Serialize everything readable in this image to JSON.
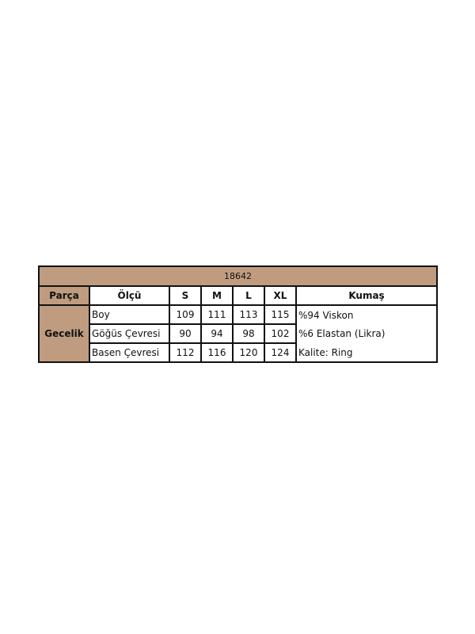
{
  "table": {
    "title": "18642",
    "headers": [
      "Parça",
      "Ölçü",
      "S",
      "M",
      "L",
      "XL",
      "Kumaş"
    ],
    "part": "Gecelik",
    "rows": [
      {
        "measure": "Boy",
        "values": [
          "109",
          "111",
          "113",
          "115"
        ],
        "fabric": "%94 Viskon"
      },
      {
        "measure": "Göğüs Çevresi",
        "values": [
          "90",
          "94",
          "98",
          "102"
        ],
        "fabric": "%6 Elastan (Likra)"
      },
      {
        "measure": "Basen Çevresi",
        "values": [
          "112",
          "116",
          "120",
          "124"
        ],
        "fabric": "Kalite: Ring"
      }
    ],
    "accent_color": "#BF9C80"
  }
}
